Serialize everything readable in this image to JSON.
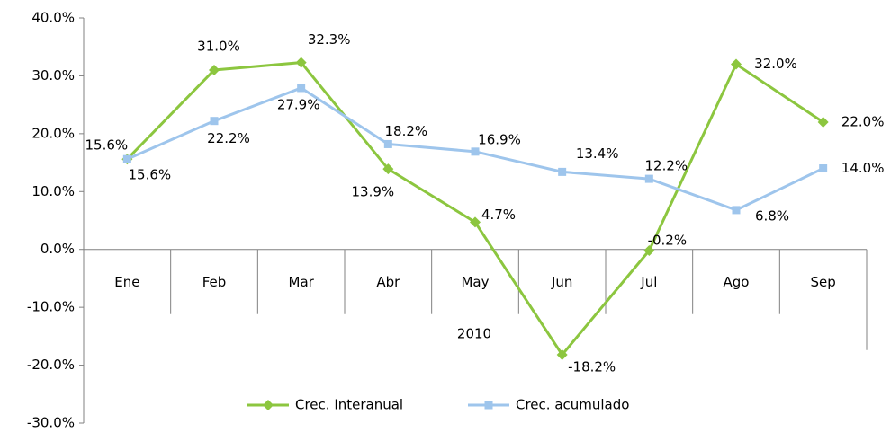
{
  "chart_data": {
    "type": "line",
    "categories": [
      "Ene",
      "Feb",
      "Mar",
      "Abr",
      "May",
      "Jun",
      "Jul",
      "Ago",
      "Sep"
    ],
    "x_group_label": "2010",
    "series": [
      {
        "name": "Crec. Interanual",
        "color": "#8cc63f",
        "marker": "diamond",
        "values": [
          15.6,
          31.0,
          32.3,
          13.9,
          4.7,
          -18.2,
          -0.2,
          32.0,
          22.0
        ],
        "value_labels": [
          "15.6%",
          "31.0%",
          "32.3%",
          "13.9%",
          "4.7%",
          "-18.2%",
          "-0.2%",
          "32.0%",
          "22.0%"
        ]
      },
      {
        "name": "Crec. acumulado",
        "color": "#9ec5ec",
        "marker": "square",
        "values": [
          15.6,
          22.2,
          27.9,
          18.2,
          16.9,
          13.4,
          12.2,
          6.8,
          14.0
        ],
        "value_labels": [
          "15.6%",
          "22.2%",
          "27.9%",
          "18.2%",
          "16.9%",
          "13.4%",
          "12.2%",
          "6.8%",
          "14.0%"
        ]
      }
    ],
    "ylim": [
      -30,
      40
    ],
    "yticks": [
      {
        "value": -30,
        "label": "-30.0%"
      },
      {
        "value": -20,
        "label": "-20.0%"
      },
      {
        "value": -10,
        "label": "-10.0%"
      },
      {
        "value": 0,
        "label": "0.0%"
      },
      {
        "value": 10,
        "label": "10.0%"
      },
      {
        "value": 20,
        "label": "20.0%"
      },
      {
        "value": 30,
        "label": "30.0%"
      },
      {
        "value": 40,
        "label": "40.0%"
      }
    ],
    "legend": "bottom",
    "grid": false
  }
}
